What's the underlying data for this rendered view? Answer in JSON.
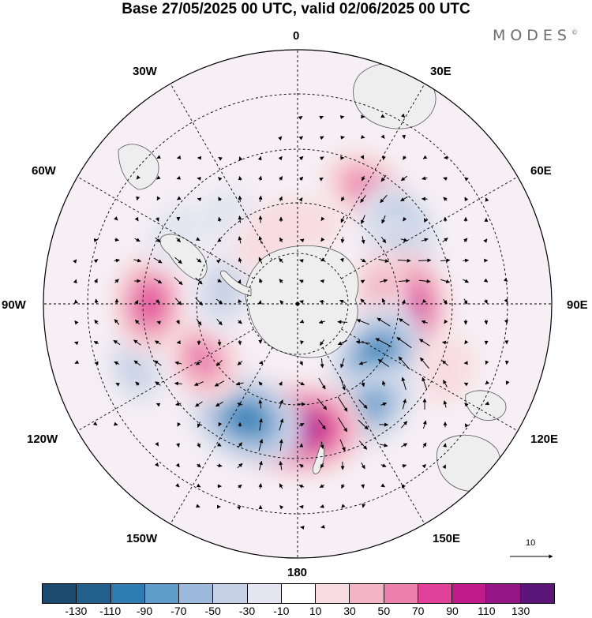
{
  "title": "Base 27/05/2025 00 UTC, valid 02/06/2025 00 UTC",
  "brand": "MODES",
  "brand_mark": "©",
  "longitude_labels": {
    "lon_0": "0",
    "lon_30e": "30E",
    "lon_60e": "60E",
    "lon_90e": "90E",
    "lon_120e": "120E",
    "lon_150e": "150E",
    "lon_180": "180",
    "lon_150w": "150W",
    "lon_120w": "120W",
    "lon_90w": "90W",
    "lon_60w": "60W",
    "lon_30w": "30W"
  },
  "reference_vector": {
    "label": "10"
  },
  "colorbar": {
    "colors": [
      "#1b4a6e",
      "#215f8d",
      "#2f7cb3",
      "#5d9ccb",
      "#9bb9da",
      "#c6d1e6",
      "#e4e5f0",
      "#ffffff",
      "#f8dbe0",
      "#f3b5c6",
      "#ec7fab",
      "#e0429a",
      "#c01a8b",
      "#951486",
      "#5c1578"
    ],
    "labels": [
      "-130",
      "-110",
      "-90",
      "-70",
      "-50",
      "-30",
      "-10",
      "10",
      "30",
      "50",
      "70",
      "90",
      "110",
      "130"
    ]
  },
  "map": {
    "projection": "south-polar-stereographic",
    "land_color": "#eeeeee",
    "anomalies": [
      {
        "lon": 30,
        "lat": -42,
        "value": 60
      },
      {
        "lon": 52,
        "lat": -44,
        "value": -65
      },
      {
        "lon": 62,
        "lat": -48,
        "value": -50
      },
      {
        "lon": 92,
        "lat": -50,
        "value": 100
      },
      {
        "lon": 80,
        "lat": -58,
        "value": 40
      },
      {
        "lon": 124,
        "lat": -55,
        "value": -105
      },
      {
        "lon": 114,
        "lat": -33,
        "value": 30
      },
      {
        "lon": 145,
        "lat": -45,
        "value": -80
      },
      {
        "lon": 178,
        "lat": -45,
        "value": 125
      },
      {
        "lon": -156,
        "lat": -45,
        "value": -115
      },
      {
        "lon": -120,
        "lat": -50,
        "value": 70
      },
      {
        "lon": -112,
        "lat": -30,
        "value": -40
      },
      {
        "lon": -90,
        "lat": -38,
        "value": 80
      },
      {
        "lon": -80,
        "lat": -62,
        "value": -50
      },
      {
        "lon": -60,
        "lat": -40,
        "value": -30
      },
      {
        "lon": -40,
        "lat": -48,
        "value": -25
      },
      {
        "lon": -10,
        "lat": -60,
        "value": 20
      },
      {
        "lon": 10,
        "lat": -60,
        "value": 15
      },
      {
        "lon": -30,
        "lat": -65,
        "value": 20
      }
    ]
  }
}
